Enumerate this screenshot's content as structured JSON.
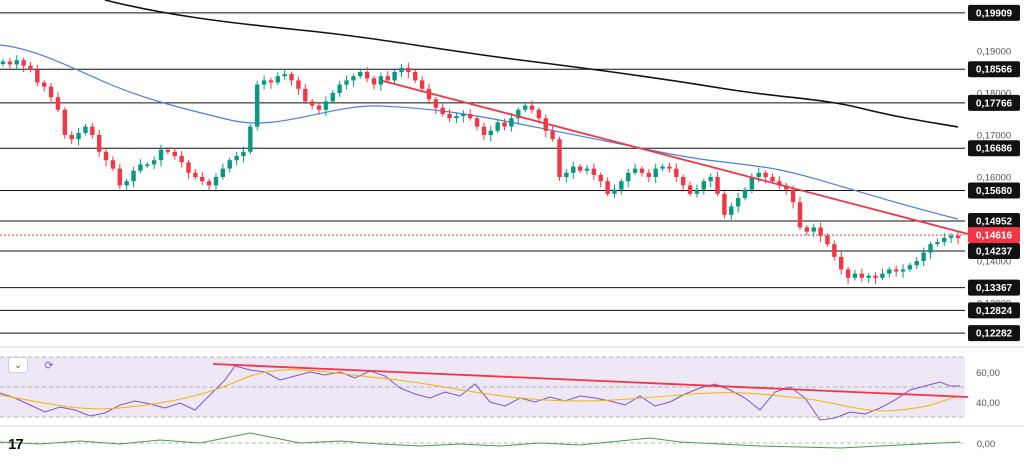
{
  "chart_data": {
    "type": "candlestick",
    "horizontal_levels": [
      {
        "label": "0,19909",
        "price": 0.19909
      },
      {
        "label": "0,18566",
        "price": 0.18566
      },
      {
        "label": "0,17766",
        "price": 0.17766
      },
      {
        "label": "0,16686",
        "price": 0.16686
      },
      {
        "label": "0,15680",
        "price": 0.1568
      },
      {
        "label": "0,14952",
        "price": 0.14952
      },
      {
        "label": "0,14237",
        "price": 0.14237
      },
      {
        "label": "0,13367",
        "price": 0.13367
      },
      {
        "label": "0,12824",
        "price": 0.12824
      },
      {
        "label": "0,12282",
        "price": 0.12282
      }
    ],
    "current_price": {
      "label": "0,14616",
      "price": 0.14616
    },
    "price_ticks": [
      "0,19000",
      "0,18000",
      "0,17000",
      "0,16000",
      "0,14000",
      "0,13000"
    ],
    "rsi_ticks": [
      "60,00",
      "40,00"
    ],
    "lower_ticks": [
      "0,00"
    ],
    "colors": {
      "up": "#089981",
      "down": "#f23645",
      "trendline": "#f23645",
      "ma_blue": "#4a7fe0",
      "ma_black": "#111111",
      "rsi_line": "#7e57c2",
      "rsi_signal": "#f5b400",
      "rsi_band": "#ede7f6",
      "lower_line": "#43a047",
      "level_line": "#111111",
      "label_bg": "#111111",
      "current_bg": "#f23645"
    }
  },
  "ui": {
    "collapse_icon": "chevron-down-icon",
    "refresh_icon": "refresh-icon",
    "logo_text": "17"
  }
}
